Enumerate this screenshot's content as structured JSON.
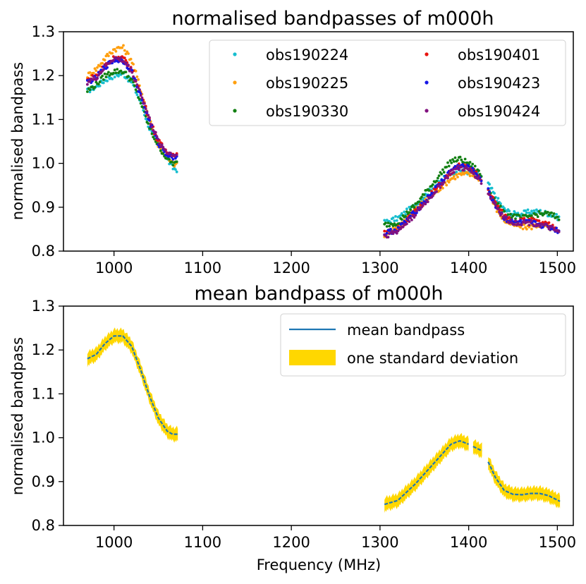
{
  "chart_data": [
    {
      "type": "scatter",
      "title": "normalised bandpasses of m000h",
      "xlabel": "",
      "ylabel": "normalised bandpass",
      "xlim": [
        943,
        1518
      ],
      "ylim": [
        0.8,
        1.3
      ],
      "xticks": [
        1000,
        1100,
        1200,
        1300,
        1400,
        1500
      ],
      "yticks": [
        0.8,
        0.9,
        1.0,
        1.1,
        1.2,
        1.3
      ],
      "xtick_labels": [
        "1000",
        "1100",
        "1200",
        "1300",
        "1400",
        "1500"
      ],
      "ytick_labels": [
        "0.8",
        "0.9",
        "1.0",
        "1.1",
        "1.2",
        "1.3"
      ],
      "legend_position": "top-right",
      "series": [
        {
          "name": "obs190224",
          "color": "#17becf",
          "x": [
            970,
            980,
            990,
            1000,
            1010,
            1020,
            1030,
            1040,
            1050,
            1060,
            1066,
            1072,
            1305,
            1320,
            1340,
            1360,
            1380,
            1390,
            1400,
            1410,
            1420,
            1430,
            1440,
            1450,
            1460,
            1470,
            1480,
            1490,
            1503
          ],
          "values": [
            1.165,
            1.175,
            1.19,
            1.2,
            1.205,
            1.185,
            1.14,
            1.08,
            1.04,
            1.01,
            0.99,
            0.985,
            0.865,
            0.875,
            0.905,
            0.945,
            0.98,
            0.985,
            0.98,
            0.975,
            0.96,
            0.925,
            0.895,
            0.885,
            0.885,
            0.89,
            0.89,
            0.885,
            0.875
          ]
        },
        {
          "name": "obs190225",
          "color": "#ff9f0e",
          "x": [
            970,
            980,
            990,
            1000,
            1010,
            1020,
            1030,
            1040,
            1050,
            1060,
            1066,
            1072,
            1305,
            1320,
            1340,
            1360,
            1380,
            1390,
            1400,
            1410,
            1420,
            1430,
            1440,
            1450,
            1460,
            1470,
            1480,
            1490,
            1503
          ],
          "values": [
            1.2,
            1.215,
            1.24,
            1.26,
            1.265,
            1.235,
            1.17,
            1.1,
            1.04,
            1.01,
            1.0,
            0.995,
            0.835,
            0.855,
            0.895,
            0.93,
            0.965,
            0.975,
            0.975,
            0.97,
            0.945,
            0.9,
            0.87,
            0.86,
            0.855,
            0.855,
            0.86,
            0.855,
            0.84
          ]
        },
        {
          "name": "obs190330",
          "color": "#138013",
          "x": [
            970,
            980,
            990,
            1000,
            1010,
            1020,
            1030,
            1040,
            1050,
            1060,
            1066,
            1072,
            1305,
            1320,
            1340,
            1360,
            1380,
            1390,
            1400,
            1410,
            1420,
            1430,
            1440,
            1450,
            1460,
            1470,
            1480,
            1490,
            1503
          ],
          "values": [
            1.165,
            1.18,
            1.2,
            1.21,
            1.21,
            1.19,
            1.14,
            1.08,
            1.04,
            1.01,
            1.0,
            1.0,
            0.86,
            0.865,
            0.905,
            0.955,
            1.005,
            1.01,
            1.0,
            0.985,
            0.95,
            0.915,
            0.885,
            0.88,
            0.875,
            0.88,
            0.885,
            0.885,
            0.875
          ]
        },
        {
          "name": "obs190401",
          "color": "#e8140f",
          "x": [
            970,
            980,
            990,
            1000,
            1010,
            1020,
            1030,
            1040,
            1050,
            1060,
            1066,
            1072,
            1305,
            1320,
            1340,
            1360,
            1380,
            1390,
            1400,
            1410,
            1420,
            1430,
            1440,
            1450,
            1460,
            1470,
            1480,
            1490,
            1503
          ],
          "values": [
            1.19,
            1.2,
            1.225,
            1.24,
            1.24,
            1.215,
            1.16,
            1.1,
            1.05,
            1.025,
            1.02,
            1.02,
            0.84,
            0.85,
            0.89,
            0.935,
            0.98,
            0.995,
            0.99,
            0.975,
            0.945,
            0.91,
            0.88,
            0.87,
            0.87,
            0.87,
            0.865,
            0.86,
            0.845
          ]
        },
        {
          "name": "obs190423",
          "color": "#1515e6",
          "x": [
            970,
            980,
            990,
            1000,
            1010,
            1020,
            1030,
            1040,
            1050,
            1060,
            1066,
            1072,
            1305,
            1320,
            1340,
            1360,
            1380,
            1390,
            1400,
            1410,
            1420,
            1430,
            1440,
            1450,
            1460,
            1470,
            1480,
            1490,
            1503
          ],
          "values": [
            1.185,
            1.195,
            1.22,
            1.235,
            1.235,
            1.21,
            1.155,
            1.095,
            1.045,
            1.02,
            1.015,
            1.015,
            0.84,
            0.85,
            0.89,
            0.935,
            0.985,
            0.995,
            0.99,
            0.975,
            0.945,
            0.905,
            0.875,
            0.865,
            0.865,
            0.865,
            0.86,
            0.855,
            0.845
          ]
        },
        {
          "name": "obs190424",
          "color": "#82127f",
          "x": [
            970,
            980,
            990,
            1000,
            1010,
            1020,
            1030,
            1040,
            1050,
            1060,
            1066,
            1072,
            1305,
            1320,
            1340,
            1360,
            1380,
            1390,
            1400,
            1410,
            1420,
            1430,
            1440,
            1450,
            1460,
            1470,
            1480,
            1490,
            1503
          ],
          "values": [
            1.185,
            1.195,
            1.22,
            1.24,
            1.235,
            1.21,
            1.16,
            1.1,
            1.05,
            1.025,
            1.02,
            1.02,
            0.835,
            0.845,
            0.885,
            0.93,
            0.98,
            0.99,
            0.985,
            0.97,
            0.94,
            0.905,
            0.875,
            0.865,
            0.865,
            0.865,
            0.86,
            0.855,
            0.84
          ]
        }
      ]
    },
    {
      "type": "line",
      "title": "mean bandpass of m000h",
      "xlabel": "Frequency (MHz)",
      "ylabel": "normalised bandpass",
      "xlim": [
        943,
        1518
      ],
      "ylim": [
        0.8,
        1.3
      ],
      "xticks": [
        1000,
        1100,
        1200,
        1300,
        1400,
        1500
      ],
      "yticks": [
        0.8,
        0.9,
        1.0,
        1.1,
        1.2,
        1.3
      ],
      "xtick_labels": [
        "1000",
        "1100",
        "1200",
        "1300",
        "1400",
        "1500"
      ],
      "ytick_labels": [
        "0.8",
        "0.9",
        "1.0",
        "1.1",
        "1.2",
        "1.3"
      ],
      "legend_position": "top-right",
      "series": [
        {
          "name": "mean bandpass",
          "color": "#1f77b4",
          "segments": [
            {
              "x": [
                970,
                980,
                990,
                1000,
                1010,
                1020,
                1030,
                1040,
                1050,
                1060,
                1066,
                1072
              ],
              "values": [
                1.18,
                1.19,
                1.215,
                1.232,
                1.232,
                1.208,
                1.155,
                1.095,
                1.045,
                1.015,
                1.008,
                1.008
              ]
            },
            {
              "x": [
                1305,
                1320,
                1340,
                1360,
                1380,
                1390,
                1400
              ],
              "values": [
                0.848,
                0.857,
                0.895,
                0.94,
                0.985,
                0.993,
                0.985
              ]
            },
            {
              "x": [
                1405,
                1410,
                1415
              ],
              "values": [
                0.98,
                0.975,
                0.97
              ]
            },
            {
              "x": [
                1422,
                1430,
                1440,
                1450,
                1460,
                1470,
                1480,
                1490,
                1503
              ],
              "values": [
                0.945,
                0.91,
                0.88,
                0.871,
                0.87,
                0.873,
                0.873,
                0.868,
                0.855
              ]
            }
          ]
        },
        {
          "name": "one standard deviation",
          "color": "#ffd700",
          "band_halfwidth": 0.015
        }
      ]
    }
  ]
}
